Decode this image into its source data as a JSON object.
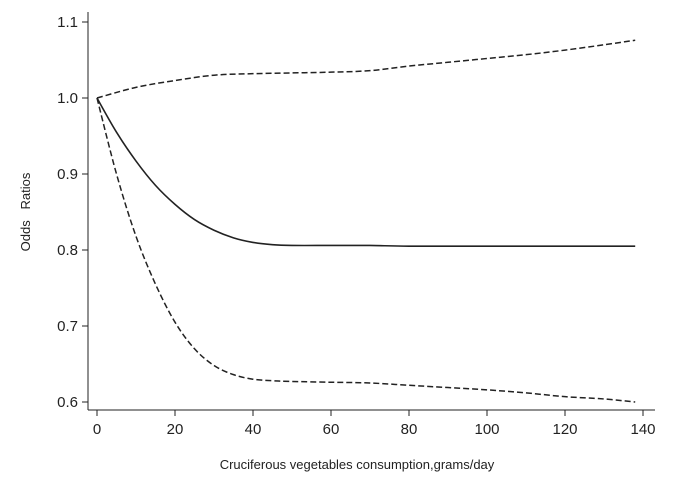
{
  "chart_data": {
    "type": "line",
    "title": "",
    "xlabel": "Cruciferous vegetables consumption,grams/day",
    "ylabel": "Odds   Ratios",
    "xlim": [
      0,
      140
    ],
    "ylim": [
      0.6,
      1.1
    ],
    "x_ticks": [
      "0",
      "20",
      "40",
      "60",
      "80",
      "100",
      "120",
      "140"
    ],
    "y_ticks": [
      "0.6",
      "0.7",
      "0.8",
      "0.9",
      "1.0",
      "1.1"
    ],
    "grid": false,
    "legend": "none",
    "series": [
      {
        "style": "solid",
        "color": "#222222",
        "x": [
          0,
          5,
          10,
          15,
          20,
          25,
          30,
          35,
          40,
          45,
          50,
          60,
          70,
          80,
          100,
          120,
          138
        ],
        "y": [
          1.0,
          0.955,
          0.917,
          0.885,
          0.86,
          0.84,
          0.826,
          0.816,
          0.81,
          0.807,
          0.806,
          0.806,
          0.806,
          0.805,
          0.805,
          0.805,
          0.805
        ]
      },
      {
        "style": "dashed",
        "color": "#222222",
        "x": [
          0,
          10,
          20,
          30,
          40,
          50,
          60,
          70,
          80,
          90,
          100,
          110,
          120,
          130,
          138
        ],
        "y": [
          1.0,
          1.014,
          1.023,
          1.03,
          1.032,
          1.033,
          1.034,
          1.036,
          1.042,
          1.047,
          1.052,
          1.057,
          1.063,
          1.07,
          1.076
        ]
      },
      {
        "style": "dashed",
        "color": "#222222",
        "x": [
          0,
          5,
          10,
          15,
          20,
          25,
          30,
          35,
          40,
          45,
          50,
          60,
          70,
          80,
          90,
          100,
          110,
          120,
          130,
          138
        ],
        "y": [
          1.0,
          0.9,
          0.818,
          0.755,
          0.705,
          0.67,
          0.648,
          0.636,
          0.63,
          0.628,
          0.627,
          0.626,
          0.625,
          0.622,
          0.619,
          0.616,
          0.612,
          0.607,
          0.604,
          0.6
        ]
      }
    ]
  }
}
